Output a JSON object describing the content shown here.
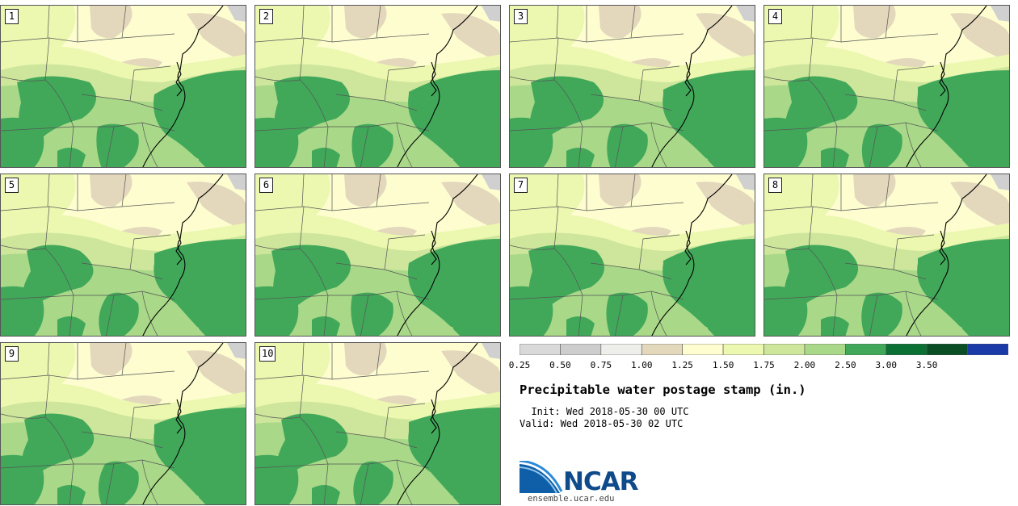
{
  "panels": [
    {
      "label": "1"
    },
    {
      "label": "2"
    },
    {
      "label": "3"
    },
    {
      "label": "4"
    },
    {
      "label": "5"
    },
    {
      "label": "6"
    },
    {
      "label": "7"
    },
    {
      "label": "8"
    },
    {
      "label": "9"
    },
    {
      "label": "10"
    }
  ],
  "colorbar": {
    "bins": [
      {
        "min": 0.25,
        "max": 0.5,
        "color": "#d9d9d9"
      },
      {
        "min": 0.5,
        "max": 0.75,
        "color": "#cdcdcd"
      },
      {
        "min": 0.75,
        "max": 1.0,
        "color": "#eeeeea"
      },
      {
        "min": 1.0,
        "max": 1.25,
        "color": "#e3d7bc"
      },
      {
        "min": 1.25,
        "max": 1.5,
        "color": "#fdfdd0"
      },
      {
        "min": 1.5,
        "max": 1.75,
        "color": "#ecf7b0"
      },
      {
        "min": 1.75,
        "max": 2.0,
        "color": "#cde69b"
      },
      {
        "min": 2.0,
        "max": 2.5,
        "color": "#a8d888"
      },
      {
        "min": 2.5,
        "max": 3.0,
        "color": "#41a85a"
      },
      {
        "min": 3.0,
        "max": 3.5,
        "color": "#0b7034"
      },
      {
        "min": 3.5,
        "max": 3.75,
        "color": "#0a4e25"
      },
      {
        "min": 3.75,
        "max": 4.0,
        "color": "#1a3aa8"
      }
    ],
    "tick_labels": [
      "0.25",
      "0.50",
      "0.75",
      "1.00",
      "1.25",
      "1.50",
      "1.75",
      "2.00",
      "2.50",
      "3.00",
      "3.50"
    ]
  },
  "title": "Precipitable water postage stamp (in.)",
  "init_text": "  Init: Wed 2018-05-30 00 UTC",
  "valid_text": "Valid: Wed 2018-05-30 02 UTC",
  "logo_text": "NCAR",
  "logo_url": "ensemble.ucar.edu"
}
